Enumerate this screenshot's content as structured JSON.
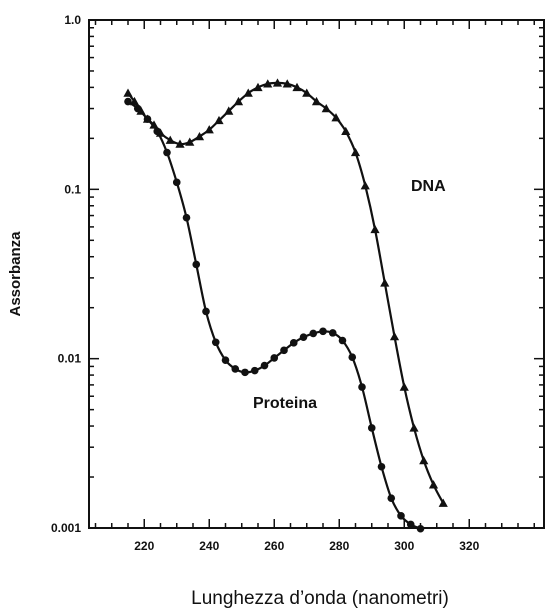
{
  "chart_data": {
    "type": "line",
    "xlabel": "Lunghezza d’onda (nanometri)",
    "ylabel": "Assorbanza",
    "y_scale": "log",
    "xlim": [
      203,
      343
    ],
    "ylim": [
      0.001,
      1.0
    ],
    "x_ticks": [
      220,
      240,
      260,
      280,
      300,
      320
    ],
    "x_tick_labels": [
      "220",
      "240",
      "260",
      "280",
      "300",
      "320"
    ],
    "y_ticks": [
      0.001,
      0.01,
      0.1,
      1.0
    ],
    "y_tick_labels": [
      "0.001",
      "0.01",
      "0.1",
      "1.0"
    ],
    "grid": false,
    "series": [
      {
        "name": "DNA",
        "marker": "triangle",
        "color": "#111111",
        "x": [
          215,
          217,
          219,
          221,
          223,
          225,
          228,
          231,
          234,
          237,
          240,
          243,
          246,
          249,
          252,
          255,
          258,
          261,
          264,
          267,
          270,
          273,
          276,
          279,
          282,
          285,
          288,
          291,
          294,
          297,
          300,
          303,
          306,
          309,
          312
        ],
        "y": [
          0.37,
          0.33,
          0.29,
          0.26,
          0.24,
          0.215,
          0.195,
          0.185,
          0.19,
          0.205,
          0.225,
          0.255,
          0.29,
          0.33,
          0.37,
          0.4,
          0.42,
          0.425,
          0.42,
          0.4,
          0.37,
          0.33,
          0.3,
          0.265,
          0.22,
          0.165,
          0.105,
          0.058,
          0.028,
          0.0135,
          0.0068,
          0.0039,
          0.0025,
          0.0018,
          0.0014
        ]
      },
      {
        "name": "Proteina",
        "marker": "circle",
        "color": "#111111",
        "x": [
          215,
          218,
          221,
          224,
          227,
          230,
          233,
          236,
          239,
          242,
          245,
          248,
          251,
          254,
          257,
          260,
          263,
          266,
          269,
          272,
          275,
          278,
          281,
          284,
          287,
          290,
          293,
          296,
          299,
          302,
          305
        ],
        "y": [
          0.33,
          0.3,
          0.26,
          0.22,
          0.165,
          0.11,
          0.068,
          0.036,
          0.019,
          0.0125,
          0.0098,
          0.0087,
          0.0083,
          0.0085,
          0.0091,
          0.0101,
          0.0112,
          0.0124,
          0.0134,
          0.0141,
          0.0145,
          0.0142,
          0.0128,
          0.0102,
          0.0068,
          0.0039,
          0.0023,
          0.0015,
          0.00118,
          0.00105,
          0.00099
        ]
      }
    ]
  }
}
